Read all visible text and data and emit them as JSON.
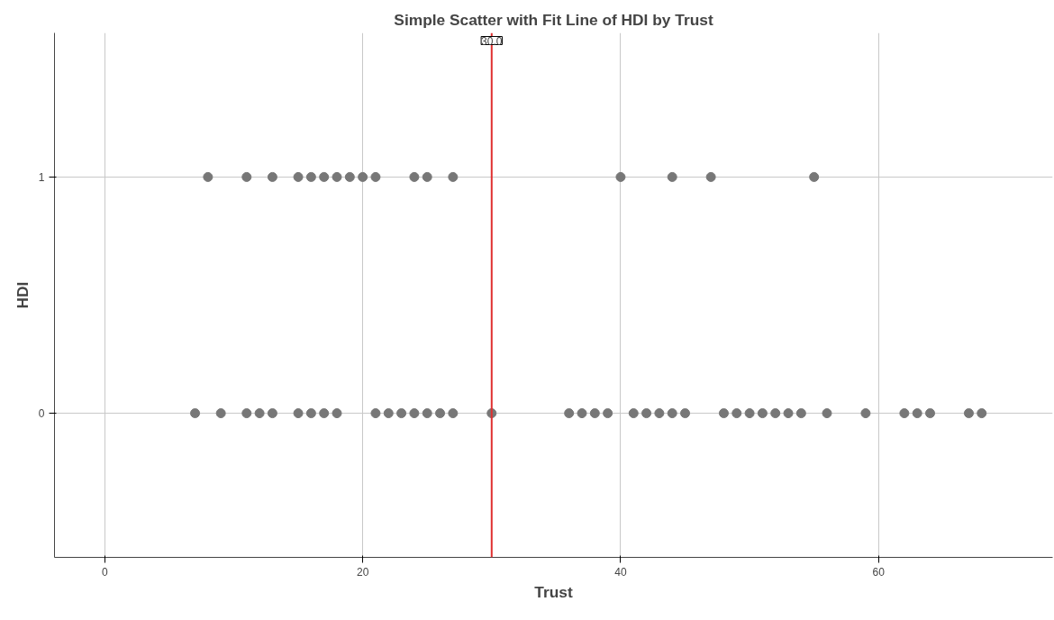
{
  "chart_data": {
    "type": "scatter",
    "title": "Simple Scatter with Fit Line of HDI by Trust",
    "xlabel": "Trust",
    "ylabel": "HDI",
    "xlim": [
      -3.9,
      73.5
    ],
    "ylim": [
      -0.61,
      1.61
    ],
    "xticks": [
      0,
      20,
      40,
      60
    ],
    "yticks": [
      0,
      1
    ],
    "grid": true,
    "marker": "circle",
    "series": [
      {
        "color": "#777777",
        "x": [
          8,
          11,
          13,
          15,
          16,
          17,
          18,
          19,
          20,
          21,
          24,
          25,
          27,
          40,
          44,
          47,
          55,
          7,
          9,
          11,
          12,
          13,
          15,
          16,
          17,
          18,
          21,
          22,
          23,
          24,
          25,
          26,
          27,
          30,
          36,
          37,
          38,
          39,
          41,
          42,
          43,
          44,
          45,
          48,
          49,
          50,
          51,
          52,
          53,
          54,
          56,
          59,
          62,
          63,
          64,
          67,
          68
        ],
        "values": [
          1,
          1,
          1,
          1,
          1,
          1,
          1,
          1,
          1,
          1,
          1,
          1,
          1,
          1,
          1,
          1,
          1,
          0,
          0,
          0,
          0,
          0,
          0,
          0,
          0,
          0,
          0,
          0,
          0,
          0,
          0,
          0,
          0,
          0,
          0,
          0,
          0,
          0,
          0,
          0,
          0,
          0,
          0,
          0,
          0,
          0,
          0,
          0,
          0,
          0,
          0,
          0,
          0,
          0,
          0,
          0,
          0
        ]
      }
    ],
    "ref_lines": [
      {
        "axis": "x",
        "value": 30,
        "label": "30.0",
        "color": "#e03030"
      }
    ]
  }
}
